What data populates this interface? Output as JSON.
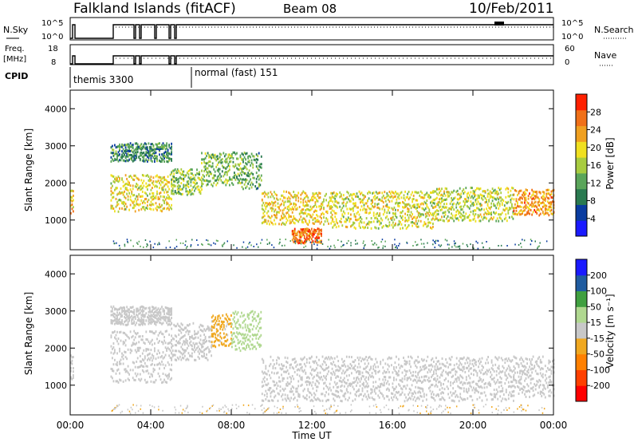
{
  "header": {
    "station": "Falkland Islands (fitACF)",
    "beam": "Beam 08",
    "date": "10/Feb/2011"
  },
  "status_panels": {
    "nsky_label": "N.Sky",
    "nsky_ticks": [
      "10^5",
      "10^0"
    ],
    "nsearch_label": "N.Search",
    "nsearch_ticks": [
      "10^5",
      "10^0"
    ],
    "freq_label": "Freq.",
    "freq_unit": "[MHz]",
    "freq_ticks": [
      "18",
      "8"
    ],
    "nave_label": "Nave",
    "nave_ticks": [
      "60",
      "0"
    ],
    "cpid_label": "CPID",
    "cpid_entries": [
      {
        "name": "themis 3300",
        "start": "00:00"
      },
      {
        "name": "normal (fast) 151",
        "start": "06:00"
      }
    ]
  },
  "chart_data": [
    {
      "type": "heatmap",
      "title": "",
      "ylabel": "Slant Range [km]",
      "yticks": [
        "4000",
        "3000",
        "2000",
        "1000"
      ],
      "ylim": [
        200,
        4500
      ],
      "xlim": [
        "00:00",
        "24:00"
      ],
      "colorbar_label": "Power [dB]",
      "colorbar_ticks": [
        "28",
        "24",
        "20",
        "16",
        "12",
        "8",
        "4"
      ],
      "colorbar_range": [
        0,
        32
      ],
      "colors": [
        "#1a1aff",
        "#0a3ca0",
        "#2a7a50",
        "#5aa55a",
        "#a8cc40",
        "#f0e020",
        "#f0a020",
        "#f07018",
        "#ff2000"
      ],
      "echo_bands": [
        {
          "t_start": 0.0,
          "t_end": 0.15,
          "range_center": 1500,
          "range_width": 350,
          "power": 22
        },
        {
          "t_start": 2.0,
          "t_end": 5.0,
          "range_center": 1750,
          "range_width": 500,
          "power": 19
        },
        {
          "t_start": 2.0,
          "t_end": 5.0,
          "range_center": 2850,
          "range_width": 250,
          "power": 10
        },
        {
          "t_start": 5.0,
          "t_end": 6.5,
          "range_center": 2050,
          "range_width": 350,
          "power": 15
        },
        {
          "t_start": 6.5,
          "t_end": 8.5,
          "range_center": 2400,
          "range_width": 450,
          "power": 14
        },
        {
          "t_start": 8.5,
          "t_end": 9.5,
          "range_center": 2350,
          "range_width": 500,
          "power": 12
        },
        {
          "t_start": 9.5,
          "t_end": 13.0,
          "range_center": 1350,
          "range_width": 450,
          "power": 20
        },
        {
          "t_start": 11.0,
          "t_end": 12.5,
          "range_center": 600,
          "range_width": 200,
          "power": 26
        },
        {
          "t_start": 13.0,
          "t_end": 18.0,
          "range_center": 1300,
          "range_width": 500,
          "power": 18
        },
        {
          "t_start": 18.0,
          "t_end": 22.0,
          "range_center": 1450,
          "range_width": 450,
          "power": 17
        },
        {
          "t_start": 22.0,
          "t_end": 24.0,
          "range_center": 1500,
          "range_width": 350,
          "power": 24
        }
      ]
    },
    {
      "type": "heatmap",
      "title": "",
      "ylabel": "Slant Range [km]",
      "yticks": [
        "4000",
        "3000",
        "2000",
        "1000"
      ],
      "ylim": [
        200,
        4500
      ],
      "xlim": [
        "00:00",
        "24:00"
      ],
      "xlabel": "Time UT",
      "xticks": [
        "00:00",
        "04:00",
        "08:00",
        "12:00",
        "16:00",
        "20:00",
        "00:00"
      ],
      "colorbar_label": "Velocity [m s⁻¹]",
      "colorbar_ticks": [
        "200",
        "100",
        "50",
        "15",
        "-15",
        "-50",
        "-100",
        "-200"
      ],
      "colorbar_range": [
        -250,
        250
      ],
      "colors": [
        "#ff0000",
        "#ff4000",
        "#ff8000",
        "#f0a820",
        "#c8c8c8",
        "#b0d890",
        "#40a040",
        "#205ca0",
        "#1a1aff"
      ],
      "echo_bands": [
        {
          "t_start": 0.0,
          "t_end": 0.15,
          "range_center": 1500,
          "range_width": 350,
          "velocity": 0
        },
        {
          "t_start": 2.0,
          "t_end": 5.0,
          "range_center": 1800,
          "range_width": 700,
          "velocity": 0
        },
        {
          "t_start": 2.0,
          "t_end": 5.0,
          "range_center": 2900,
          "range_width": 250,
          "velocity": 0
        },
        {
          "t_start": 5.0,
          "t_end": 7.0,
          "range_center": 2200,
          "range_width": 500,
          "velocity": 0
        },
        {
          "t_start": 7.0,
          "t_end": 8.0,
          "range_center": 2500,
          "range_width": 450,
          "velocity": -40
        },
        {
          "t_start": 8.0,
          "t_end": 9.5,
          "range_center": 2500,
          "range_width": 550,
          "velocity": 60
        },
        {
          "t_start": 9.5,
          "t_end": 22.0,
          "range_center": 1200,
          "range_width": 600,
          "velocity": 0
        },
        {
          "t_start": 22.0,
          "t_end": 24.0,
          "range_center": 1250,
          "range_width": 550,
          "velocity": 0
        }
      ]
    }
  ]
}
